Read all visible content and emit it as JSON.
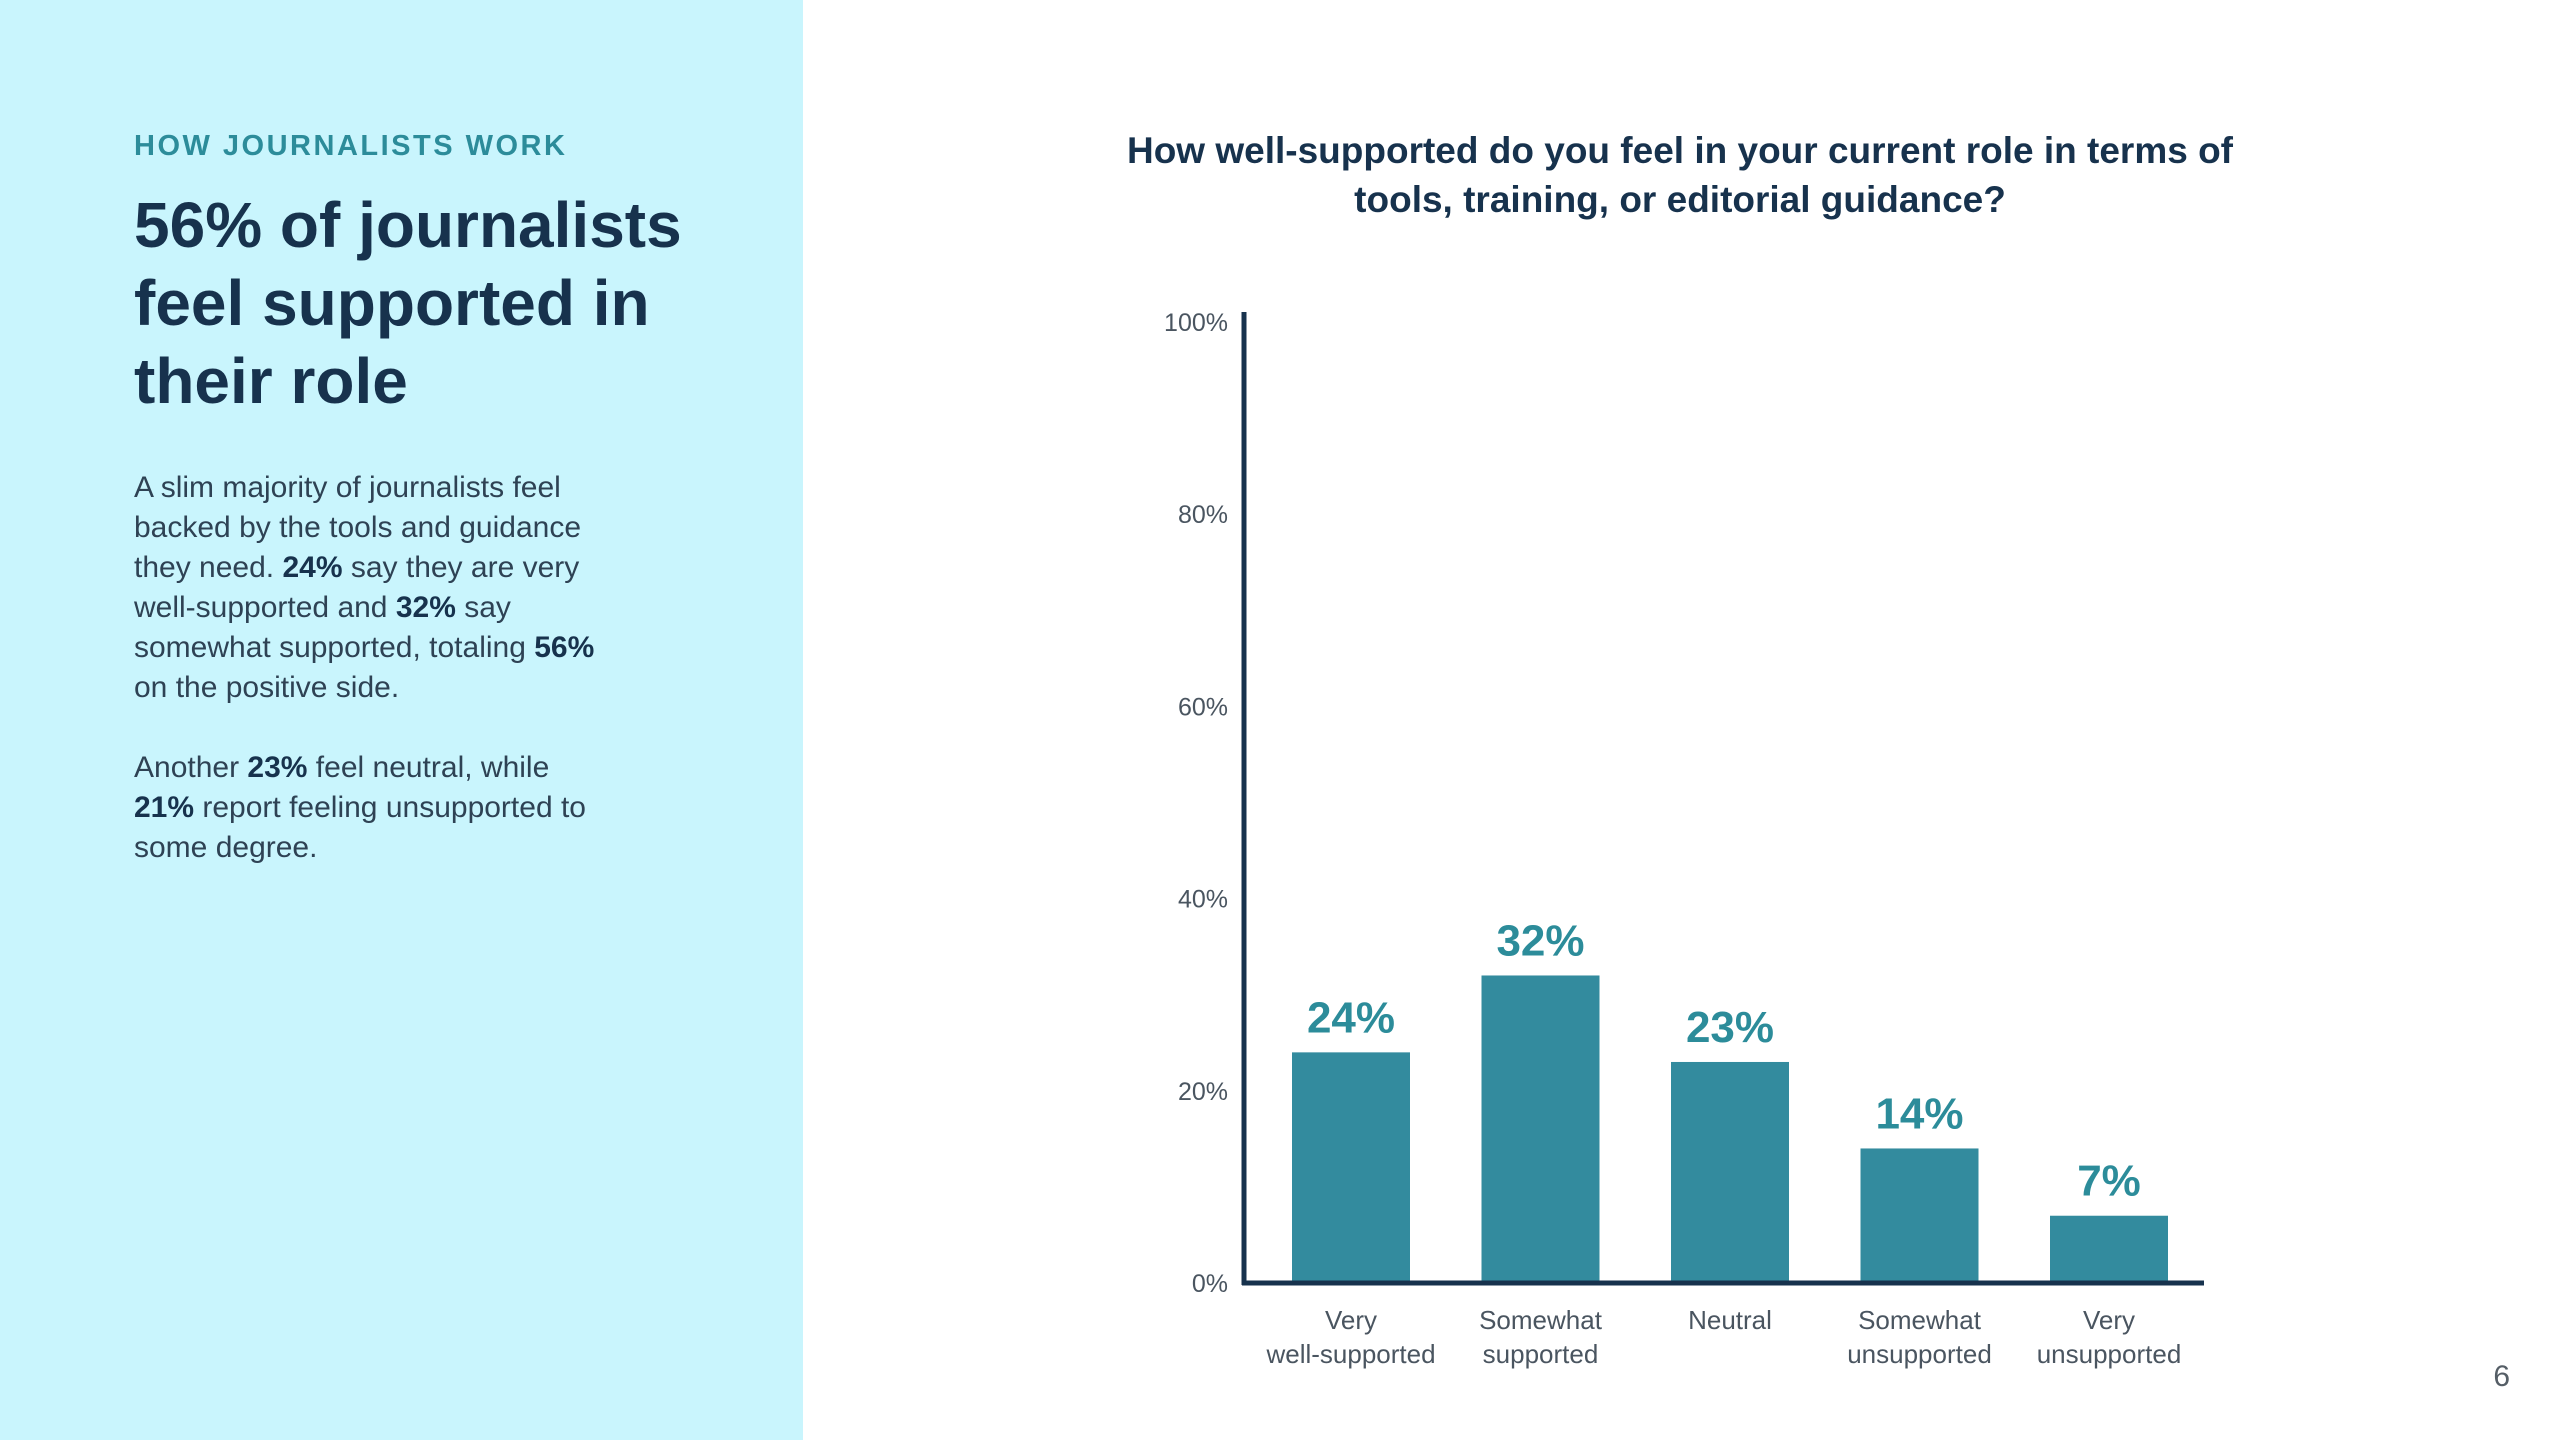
{
  "left_panel": {
    "eyebrow": "HOW JOURNALISTS WORK",
    "headline": "56% of journalists feel supported in their role",
    "paragraph1": [
      {
        "text": "A slim majority of journalists feel backed by the tools and guidance they need. ",
        "bold": false
      },
      {
        "text": "24%",
        "bold": true
      },
      {
        "text": " say they are very well-supported and ",
        "bold": false
      },
      {
        "text": "32%",
        "bold": true
      },
      {
        "text": " say somewhat supported, totaling ",
        "bold": false
      },
      {
        "text": "56%",
        "bold": true
      },
      {
        "text": " on the positive side.",
        "bold": false
      }
    ],
    "paragraph2": [
      {
        "text": "Another ",
        "bold": false
      },
      {
        "text": "23%",
        "bold": true
      },
      {
        "text": " feel neutral, while ",
        "bold": false
      },
      {
        "text": "21%",
        "bold": true
      },
      {
        "text": " report feeling unsupported to some degree.",
        "bold": false
      }
    ]
  },
  "colors": {
    "panel_background": "#c9f5fd",
    "bar": "#338b9e",
    "data_label": "#2c8c9a",
    "axis": "#17324d",
    "title": "#17324d"
  },
  "page_number": "6",
  "chart_data": {
    "type": "bar",
    "title": "How well-supported do you feel in your current role in terms of tools, training, or editorial guidance?",
    "categories": [
      [
        "Very",
        "well-supported"
      ],
      [
        "Somewhat",
        "supported"
      ],
      [
        "Neutral"
      ],
      [
        "Somewhat",
        "unsupported"
      ],
      [
        "Very",
        "unsupported"
      ]
    ],
    "values": [
      24,
      32,
      23,
      14,
      7
    ],
    "data_labels": [
      "24%",
      "32%",
      "23%",
      "14%",
      "7%"
    ],
    "ylim": [
      0,
      100
    ],
    "yticks": [
      0,
      20,
      40,
      60,
      80,
      100
    ],
    "ytick_labels": [
      "0%",
      "20%",
      "40%",
      "60%",
      "80%",
      "100%"
    ],
    "xlabel": "",
    "ylabel": "",
    "grid": false,
    "legend": "none"
  }
}
